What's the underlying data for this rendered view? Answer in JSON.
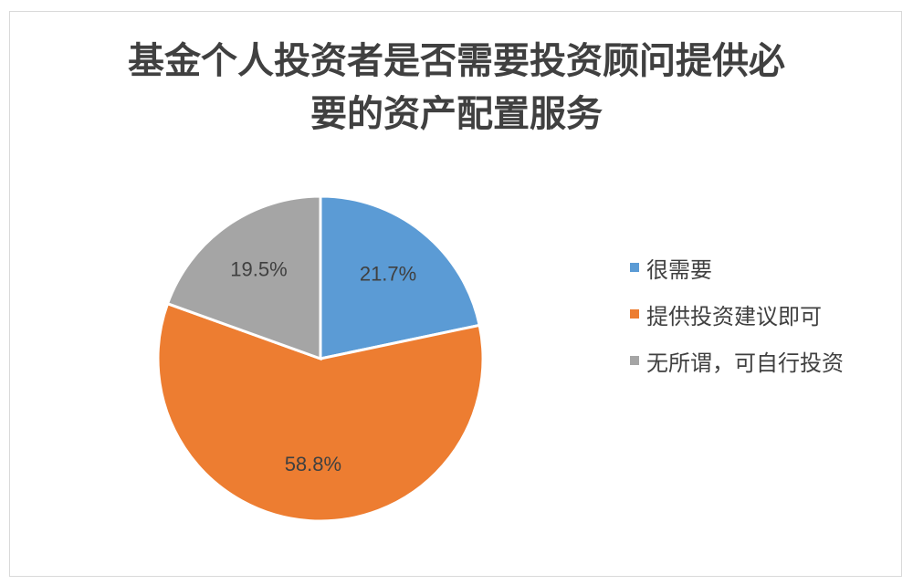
{
  "chart_data": {
    "type": "pie",
    "title": "基金个人投资者是否需要投资顾问提供必要的资产配置服务",
    "title_lines": [
      "基金个人投资者是否需要投资顾问提供必",
      "要的资产配置服务"
    ],
    "categories": [
      "很需要",
      "提供投资建议即可",
      "无所谓，可自行投资"
    ],
    "values": [
      21.7,
      58.8,
      19.5
    ],
    "labels": [
      "21.7%",
      "58.8%",
      "19.5%"
    ],
    "colors": [
      "#5b9bd5",
      "#ed7d31",
      "#a5a5a5"
    ],
    "legend": "right"
  }
}
